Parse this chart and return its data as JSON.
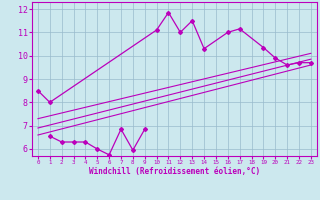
{
  "xlabel": "Windchill (Refroidissement éolien,°C)",
  "xlim": [
    -0.5,
    23.5
  ],
  "ylim": [
    5.7,
    12.3
  ],
  "xticks": [
    0,
    1,
    2,
    3,
    4,
    5,
    6,
    7,
    8,
    9,
    10,
    11,
    12,
    13,
    14,
    15,
    16,
    17,
    18,
    19,
    20,
    21,
    22,
    23
  ],
  "yticks": [
    6,
    7,
    8,
    9,
    10,
    11,
    12
  ],
  "bg_color": "#cce8ee",
  "line_color": "#bb00bb",
  "grid_color": "#99bbcc",
  "curve1_x": [
    0,
    1,
    10,
    11,
    12,
    13,
    14,
    16,
    17,
    19,
    20,
    21,
    22,
    23
  ],
  "curve1_y": [
    8.5,
    8.0,
    11.1,
    11.85,
    11.0,
    11.5,
    10.3,
    11.0,
    11.15,
    10.35,
    9.9,
    9.6,
    9.7,
    9.7
  ],
  "curve2_x": [
    1,
    2,
    3,
    4,
    5,
    6,
    7,
    8,
    9
  ],
  "curve2_y": [
    6.55,
    6.3,
    6.3,
    6.3,
    6.0,
    5.75,
    6.85,
    5.95,
    6.85
  ],
  "line1_x": [
    0,
    23
  ],
  "line1_y": [
    6.6,
    9.6
  ],
  "line2_x": [
    0,
    23
  ],
  "line2_y": [
    6.9,
    9.85
  ],
  "line3_x": [
    0,
    23
  ],
  "line3_y": [
    7.3,
    10.1
  ]
}
